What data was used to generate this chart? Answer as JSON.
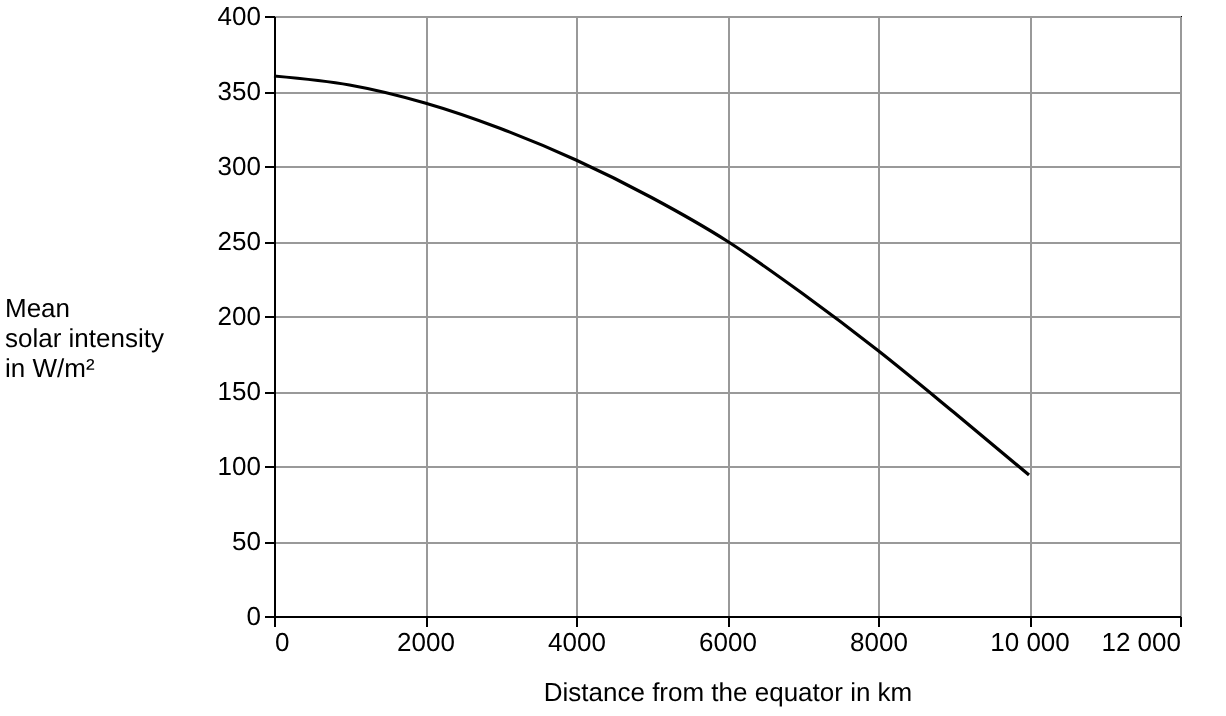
{
  "chart_data": {
    "type": "line",
    "xlabel": "Distance from the equator in km",
    "ylabel": "Mean\nsolar intensity\nin W/m²",
    "x": [
      0,
      1000,
      2000,
      3000,
      4000,
      5000,
      6000,
      7000,
      8000,
      9000,
      10000
    ],
    "series": [
      {
        "color": "#000000",
        "values": [
          360,
          354,
          342,
          325,
          304,
          279,
          250,
          215,
          177,
          136,
          94
        ]
      }
    ],
    "xlim": [
      0,
      12000
    ],
    "xticks": [
      0,
      2000,
      4000,
      6000,
      8000,
      {
        "value": 10000,
        "label": "10 000"
      },
      {
        "value": 12000,
        "label": "12 000"
      }
    ],
    "ylim": [
      0,
      400
    ],
    "yticks": [
      0,
      50,
      100,
      150,
      200,
      250,
      300,
      350,
      400
    ],
    "grid": true,
    "marker": "none",
    "line_style": "solid"
  }
}
